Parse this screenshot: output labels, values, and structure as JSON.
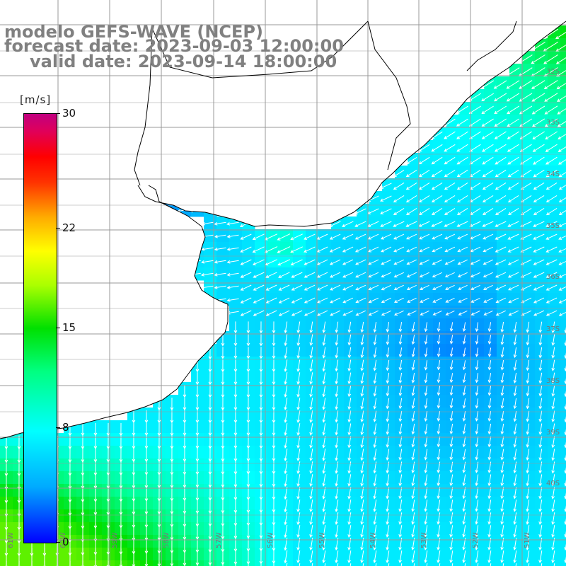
{
  "title": {
    "line1": "modelo GEFS-WAVE (NCEP)",
    "line2": "forecast date: 2023-09-03 12:00:00",
    "line3": "valid date: 2023-09-14 18:00:00"
  },
  "colorbar": {
    "unit": "[m/s]",
    "min": 0,
    "max": 30,
    "ticks": [
      {
        "label": "30",
        "value": 30
      },
      {
        "label": "22",
        "value": 22
      },
      {
        "label": "15",
        "value": 15
      },
      {
        "label": "8",
        "value": 8
      },
      {
        "label": "0",
        "value": 0
      }
    ],
    "colors": [
      "#0000ff",
      "#00aaff",
      "#00ffff",
      "#00ff80",
      "#00e000",
      "#aaff00",
      "#ffff00",
      "#ffaa00",
      "#ff3300",
      "#ff0000",
      "#e0005a",
      "#c00080"
    ]
  },
  "lat_labels": [
    "32S",
    "33S",
    "34S",
    "35S",
    "36S",
    "37S",
    "38S",
    "39S",
    "40S"
  ],
  "lon_labels": [
    "61W",
    "60W",
    "59W",
    "58W",
    "57W",
    "56W",
    "55W",
    "54W",
    "53W",
    "52W",
    "51W"
  ],
  "land_color": "#ffffff",
  "grid_color": "#999999",
  "coast_color": "#000000",
  "arrow_color": "#ffffff"
}
